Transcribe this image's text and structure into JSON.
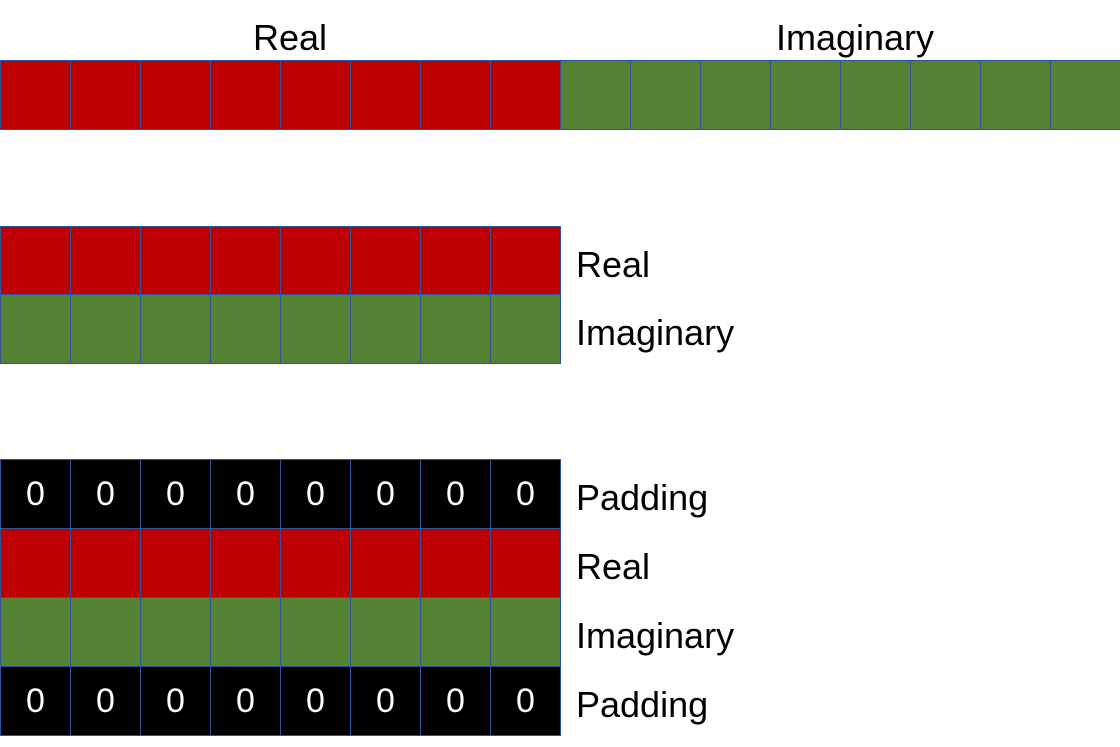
{
  "colors": {
    "real": "#c00000",
    "imaginary": "#548235",
    "padding": "#000000",
    "cell_border": "#2f5597",
    "padding_text": "#ffffff"
  },
  "section1": {
    "real_label": "Real",
    "imaginary_label": "Imaginary",
    "cells": [
      "real",
      "real",
      "real",
      "real",
      "real",
      "real",
      "real",
      "real",
      "imaginary",
      "imaginary",
      "imaginary",
      "imaginary",
      "imaginary",
      "imaginary",
      "imaginary",
      "imaginary"
    ]
  },
  "section2": {
    "rows": [
      {
        "type": "real",
        "label": "Real",
        "cells": 8
      },
      {
        "type": "imaginary",
        "label": "Imaginary",
        "cells": 8
      }
    ]
  },
  "section3": {
    "padding_value": "0",
    "rows": [
      {
        "type": "padding",
        "label": "Padding",
        "cells": 8
      },
      {
        "type": "real",
        "label": "Real",
        "cells": 8
      },
      {
        "type": "imaginary",
        "label": "Imaginary",
        "cells": 8
      },
      {
        "type": "padding",
        "label": "Padding",
        "cells": 8
      }
    ]
  }
}
